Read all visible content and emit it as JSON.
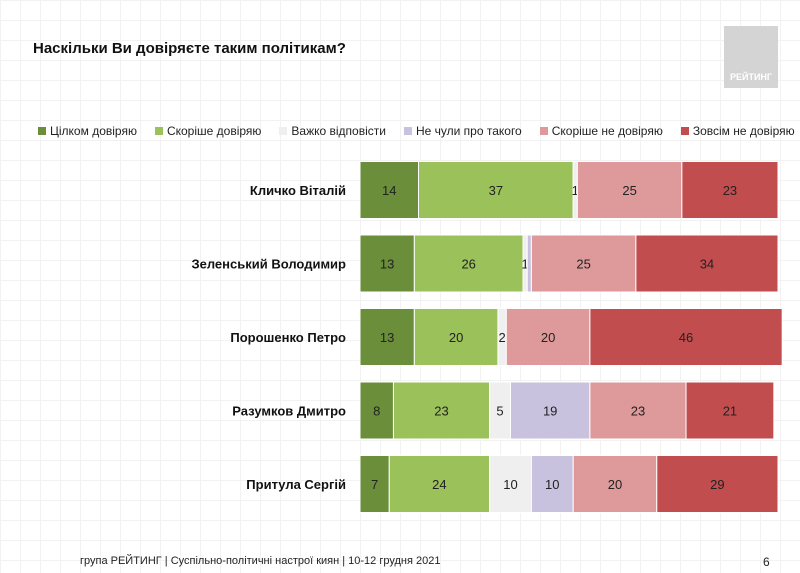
{
  "title": "Наскільки Ви довіряєте таким політикам?",
  "logo_text": "РЕЙТИНГ",
  "footer": "група РЕЙТИНГ | Суспільно-політичні настрої киян | 10-12 грудня 2021",
  "page_number": "6",
  "chart_data": {
    "type": "bar",
    "orientation": "horizontal-stacked-100",
    "categories": [
      "Кличко Віталій",
      "Зеленський Володимир",
      "Порошенко Петро",
      "Разумков Дмитро",
      "Притула Сергій"
    ],
    "series": [
      {
        "name": "Цілком довіряю",
        "color": "#6b8e3a",
        "values": [
          14,
          13,
          13,
          8,
          7
        ]
      },
      {
        "name": "Скоріше довіряю",
        "color": "#9bc15a",
        "values": [
          37,
          26,
          20,
          23,
          24
        ]
      },
      {
        "name": "Важко відповісти",
        "color": "#efefef",
        "values": [
          1,
          1,
          2,
          5,
          10
        ]
      },
      {
        "name": "Не чули про такого",
        "color": "#c9c2de",
        "values": [
          0,
          1,
          0,
          19,
          10
        ]
      },
      {
        "name": "Скоріше не довіряю",
        "color": "#de9a9a",
        "values": [
          25,
          25,
          20,
          23,
          20
        ]
      },
      {
        "name": "Зовсім не довіряю",
        "color": "#c24d4f",
        "values": [
          23,
          34,
          46,
          21,
          29
        ]
      }
    ],
    "legend": "top",
    "grid": false
  }
}
